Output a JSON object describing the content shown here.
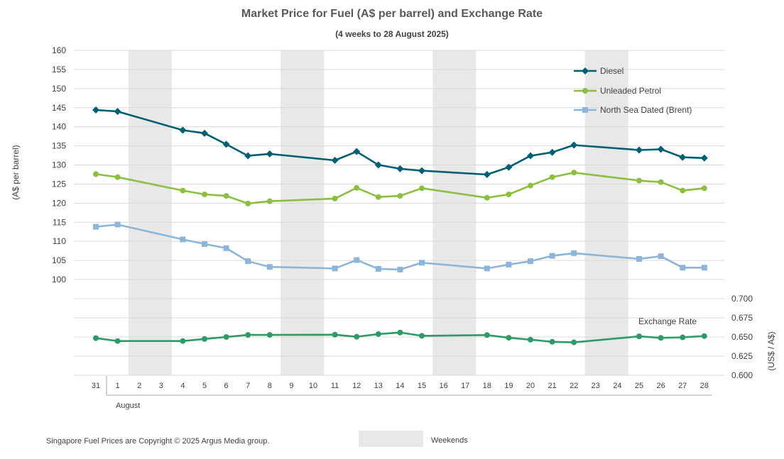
{
  "chart_data": {
    "type": "line",
    "title": "Market Price for Fuel (A$ per barrel) and Exchange Rate",
    "subtitle": "(4 weeks to 28 August 2025)",
    "ylabel": "(A$ per barrel)",
    "y2label": "(US$ / A$)",
    "xgroup_label": "August",
    "ylim": [
      100,
      160
    ],
    "yticks": [
      100,
      105,
      110,
      115,
      120,
      125,
      130,
      135,
      140,
      145,
      150,
      155,
      160
    ],
    "y2lim": [
      0.6,
      0.7
    ],
    "y2ticks": [
      "0.600",
      "0.625",
      "0.650",
      "0.675",
      "0.700"
    ],
    "x_labels": [
      "31",
      "1",
      "2",
      "3",
      "4",
      "5",
      "6",
      "7",
      "8",
      "9",
      "10",
      "11",
      "12",
      "13",
      "14",
      "15",
      "16",
      "17",
      "18",
      "19",
      "20",
      "21",
      "22",
      "23",
      "24",
      "25",
      "26",
      "27",
      "28"
    ],
    "weekends": [
      [
        2,
        3
      ],
      [
        9,
        10
      ],
      [
        16,
        17
      ],
      [
        23,
        24
      ]
    ],
    "grid": true,
    "legend_position": "top-right",
    "series": [
      {
        "name": "Diesel",
        "color": "#005F73",
        "marker": "diamond",
        "axis": "left",
        "values": [
          144.4,
          144.0,
          null,
          null,
          139.1,
          138.3,
          135.4,
          132.4,
          132.9,
          null,
          null,
          131.2,
          133.5,
          130.0,
          129.0,
          128.5,
          null,
          null,
          127.5,
          129.4,
          132.4,
          133.3,
          135.2,
          null,
          null,
          133.9,
          134.1,
          132.0,
          131.8
        ]
      },
      {
        "name": "Unleaded Petrol",
        "color": "#8CBF3F",
        "marker": "circle",
        "axis": "left",
        "values": [
          127.6,
          126.8,
          null,
          null,
          123.3,
          122.3,
          121.9,
          119.9,
          120.5,
          null,
          null,
          121.2,
          124.0,
          121.6,
          121.9,
          123.9,
          null,
          null,
          121.4,
          122.3,
          124.6,
          126.8,
          128.0,
          null,
          null,
          125.9,
          125.5,
          123.3,
          123.9
        ]
      },
      {
        "name": "North Sea Dated (Brent)",
        "color": "#8DB4D9",
        "marker": "square",
        "axis": "left",
        "values": [
          113.8,
          114.4,
          null,
          null,
          110.5,
          109.3,
          108.2,
          104.8,
          103.3,
          null,
          null,
          102.9,
          105.1,
          102.8,
          102.6,
          104.4,
          null,
          null,
          102.9,
          103.9,
          104.8,
          106.2,
          106.9,
          null,
          null,
          105.4,
          106.1,
          103.1,
          103.1
        ]
      },
      {
        "name": "Exchange Rate",
        "color": "#2E9B66",
        "marker": "circle",
        "axis": "right",
        "values": [
          0.6485,
          0.6447,
          null,
          null,
          0.6447,
          0.6474,
          0.65,
          0.6527,
          0.6527,
          null,
          null,
          0.653,
          0.6503,
          0.6538,
          0.6558,
          0.6515,
          null,
          null,
          0.6525,
          0.649,
          0.6465,
          0.6437,
          0.643,
          null,
          null,
          0.6508,
          0.6488,
          0.6495,
          0.6512
        ]
      }
    ],
    "footnote": "Singapore Fuel Prices are Copyright © 2025 Argus Media group.",
    "weekend_legend": "Weekends"
  }
}
